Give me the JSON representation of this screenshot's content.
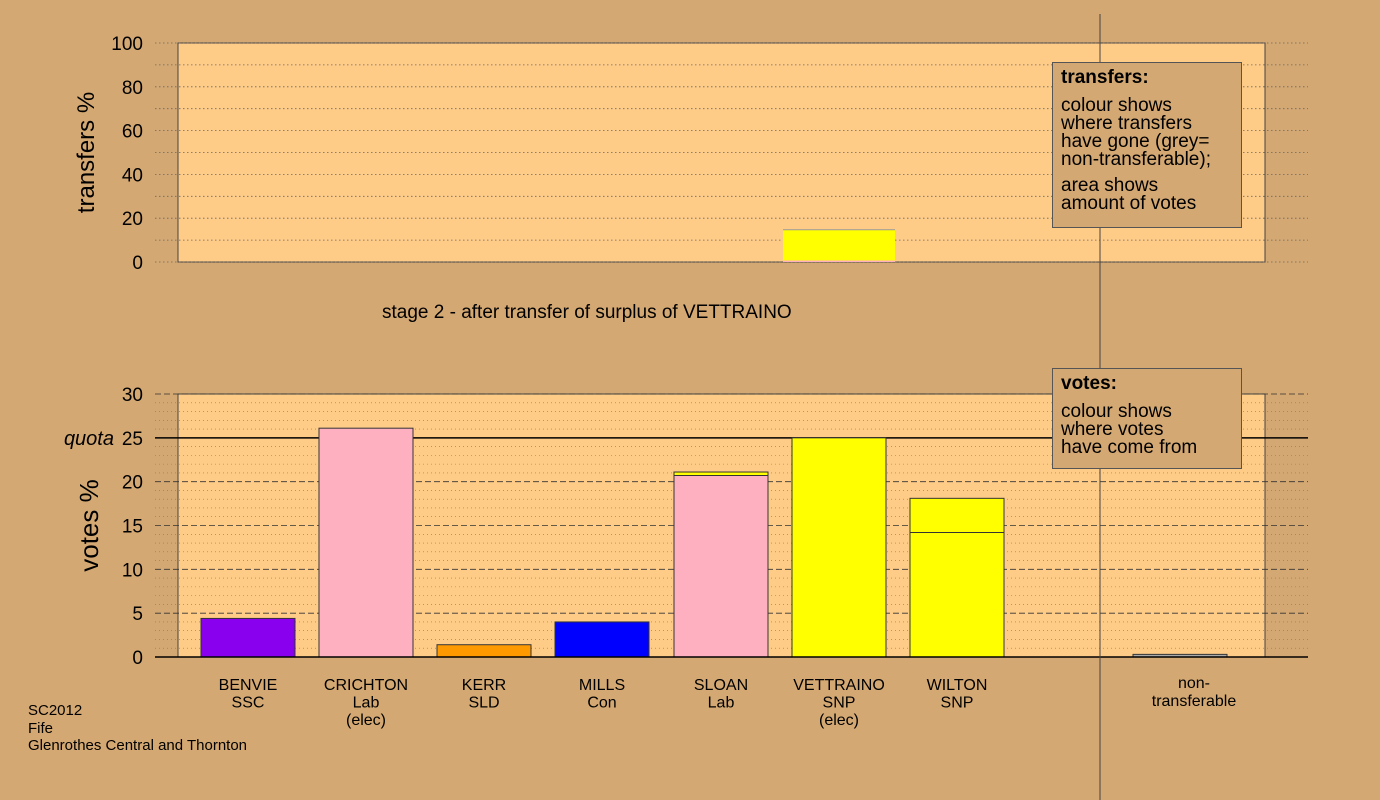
{
  "stage_title": "stage 2 - after transfer of surplus of VETTRAINO",
  "caption": [
    "SC2012",
    "Fife",
    "Glenrothes Central and Thornton"
  ],
  "legend_transfers": {
    "title": "transfers:",
    "lines": [
      "colour shows",
      "where transfers",
      "have gone (grey=",
      "non-transferable);",
      "area shows",
      "amount of votes"
    ]
  },
  "legend_votes": {
    "title": "votes:",
    "lines": [
      "colour shows",
      "where votes",
      "have come from"
    ]
  },
  "chart_data": [
    {
      "type": "bar",
      "ylabel": "transfers %",
      "ylim": [
        0,
        100
      ],
      "yticks": [
        0,
        20,
        40,
        60,
        80,
        100
      ],
      "bars": [
        {
          "position": "VETTRAINO",
          "segments": [
            {
              "value": 0.7,
              "color": "#ffb0c0"
            },
            {
              "value": 14.0,
              "color": "#ffff00"
            }
          ]
        }
      ]
    },
    {
      "type": "bar",
      "ylabel": "votes %",
      "ylim": [
        0,
        30
      ],
      "yticks": [
        0,
        5,
        10,
        15,
        20,
        25,
        30
      ],
      "quota": {
        "label": "quota",
        "value": 25
      },
      "categories": [
        {
          "name": "BENVIE",
          "party": "SSC",
          "note": "",
          "segments": [
            {
              "value": 4.4,
              "color": "#8800ee"
            }
          ]
        },
        {
          "name": "CRICHTON",
          "party": "Lab",
          "note": "(elec)",
          "segments": [
            {
              "value": 26.1,
              "color": "#ffb0c0"
            }
          ]
        },
        {
          "name": "KERR",
          "party": "SLD",
          "note": "",
          "segments": [
            {
              "value": 1.4,
              "color": "#ff9900"
            }
          ]
        },
        {
          "name": "MILLS",
          "party": "Con",
          "note": "",
          "segments": [
            {
              "value": 4.0,
              "color": "#0000ff"
            }
          ]
        },
        {
          "name": "SLOAN",
          "party": "Lab",
          "note": "",
          "segments": [
            {
              "value": 20.7,
              "color": "#ffb0c0"
            },
            {
              "value": 0.4,
              "color": "#ffff00"
            }
          ]
        },
        {
          "name": "VETTRAINO",
          "party": "SNP",
          "note": "(elec)",
          "segments": [
            {
              "value": 25.0,
              "color": "#ffff00"
            }
          ]
        },
        {
          "name": "WILTON",
          "party": "SNP",
          "note": "",
          "segments": [
            {
              "value": 14.2,
              "color": "#ffff00"
            },
            {
              "value": 3.9,
              "color": "#ffff00"
            }
          ]
        }
      ],
      "nontransferable": {
        "label": "non-\ntransferable",
        "value": 0.3,
        "color": "#aaaaaa"
      }
    }
  ]
}
